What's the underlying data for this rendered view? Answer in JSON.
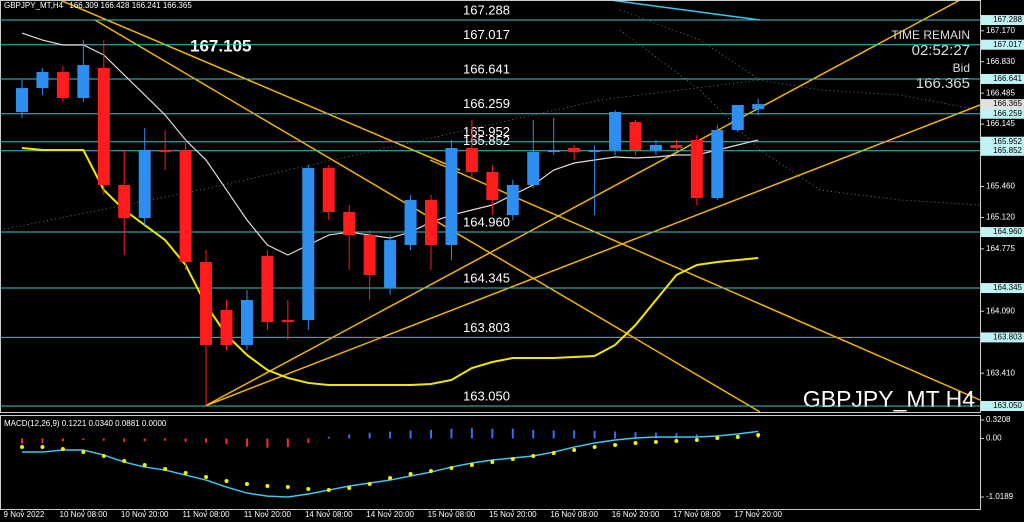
{
  "chart_data": [
    {
      "type": "candlestick",
      "title": "GBPJPY_MT,H4",
      "watermark": "GBPJPY_MT H4",
      "annotation": 167.105,
      "timer": {
        "label": "TIME REMAIN",
        "value": "02:52:27"
      },
      "bid_label": "Bid",
      "categories": [
        "9 Nov 2022",
        null,
        null,
        "10 Nov 08:00",
        null,
        null,
        "10 Nov 20:00",
        null,
        null,
        "11 Nov 08:00",
        null,
        null,
        "11 Nov 20:00",
        null,
        null,
        "14 Nov 08:00",
        null,
        null,
        "14 Nov 20:00",
        null,
        null,
        "15 Nov 08:00",
        null,
        null,
        "15 Nov 20:00",
        null,
        null,
        "16 Nov 08:00",
        null,
        null,
        "16 Nov 20:00",
        null,
        null,
        "17 Nov 08:00",
        null,
        null,
        "17 Nov 20:00"
      ],
      "open": [
        166.278,
        166.541,
        166.717,
        166.432,
        166.761,
        165.477,
        165.114,
        165.861,
        165.861,
        164.631,
        164.104,
        163.72,
        164.697,
        163.994,
        163.994,
        165.663,
        165.18,
        164.927,
        164.346,
        164.818,
        165.312,
        164.818,
        165.883,
        165.619,
        165.147,
        165.477,
        165.839,
        165.883,
        165.839,
        165.861,
        166.168,
        165.861,
        165.916,
        165.971,
        165.334,
        166.08,
        166.309
      ],
      "high": [
        166.629,
        166.761,
        166.783,
        167.068,
        167.068,
        165.861,
        166.102,
        166.08,
        165.971,
        164.763,
        164.214,
        164.324,
        164.763,
        164.214,
        165.696,
        165.696,
        165.257,
        164.982,
        164.927,
        165.367,
        165.367,
        165.971,
        166.19,
        165.696,
        165.532,
        166.19,
        166.212,
        165.916,
        165.916,
        166.3,
        166.19,
        165.971,
        165.971,
        166.025,
        166.135,
        166.355,
        166.428
      ],
      "low": [
        166.212,
        166.465,
        166.388,
        166.388,
        165.367,
        164.708,
        165.037,
        165.641,
        164.543,
        163.05,
        163.665,
        163.665,
        163.885,
        163.775,
        163.885,
        165.092,
        164.543,
        164.214,
        164.269,
        164.763,
        164.543,
        164.653,
        165.532,
        165.147,
        165.092,
        165.444,
        165.806,
        165.751,
        165.147,
        165.806,
        165.806,
        165.806,
        165.861,
        165.257,
        165.312,
        166.058,
        166.241
      ],
      "close": [
        166.541,
        166.717,
        166.432,
        166.794,
        165.477,
        165.114,
        165.861,
        165.839,
        164.631,
        163.72,
        163.72,
        164.214,
        163.972,
        163.972,
        165.663,
        165.18,
        164.927,
        164.488,
        164.872,
        165.312,
        164.818,
        165.883,
        165.619,
        165.312,
        165.477,
        165.839,
        165.861,
        165.839,
        165.861,
        166.278,
        165.861,
        165.916,
        165.883,
        165.334,
        166.08,
        166.355,
        166.365
      ],
      "up_color": "#2e8ff0",
      "down_color": "#ff1c1c",
      "series": [
        {
          "color": "#e8d6d6",
          "values": [
            167.145,
            167.068,
            167.014,
            167.014,
            166.904,
            166.684,
            166.465,
            166.245,
            165.971,
            165.751,
            165.422,
            165.092,
            164.818,
            164.708,
            164.818,
            164.927,
            164.96,
            164.927,
            164.894,
            164.96,
            165.07,
            165.147,
            165.202,
            165.257,
            165.367,
            165.477,
            165.641,
            165.718,
            165.751,
            165.784,
            165.773,
            165.784,
            165.806,
            165.806,
            165.861,
            165.916,
            165.971
          ]
        },
        {
          "color": "#f0e800",
          "values": [
            165.883,
            165.861,
            165.861,
            165.861,
            165.422,
            165.202,
            165.037,
            164.872,
            164.598,
            164.159,
            163.83,
            163.61,
            163.445,
            163.358,
            163.303,
            163.281,
            163.281,
            163.281,
            163.281,
            163.281,
            163.292,
            163.336,
            163.467,
            163.533,
            163.577,
            163.577,
            163.577,
            163.588,
            163.599,
            163.72,
            163.939,
            164.214,
            164.488,
            164.598,
            164.631,
            164.653,
            164.675
          ]
        }
      ],
      "ylim": [
        162.984,
        167.508
      ],
      "yticks": [
        {
          "value": 167.17,
          "label": "167.170"
        },
        {
          "value": 166.83,
          "label": "166.830"
        },
        166.485,
        166.145,
        {
          "value": 165.46,
          "label": "165.460"
        },
        {
          "value": 165.12,
          "label": "165.120"
        },
        164.775,
        {
          "value": 164.09,
          "label": "164.090"
        },
        {
          "value": 163.41,
          "label": "163.410"
        }
      ],
      "levels": [
        167.288,
        167.017,
        166.641,
        166.259,
        165.952,
        165.852,
        {
          "value": 164.96,
          "label": "164.960"
        },
        164.345,
        163.803,
        {
          "value": 163.05,
          "label": "163.050"
        }
      ],
      "level_color": "#3cc4c8"
    },
    {
      "type": "macd",
      "title": "MACD(12,26,9) 0.1221 0.0340 0.0881 0.0000",
      "ylim": [
        -1.0189,
        0.3208
      ],
      "yticks": [
        0.3208,
        {
          "value": 0,
          "label": "0.00"
        },
        -1.0189
      ],
      "up_color": "#3b6cf0",
      "down_color": "#ff2a2a",
      "histogram": [
        -0.09,
        -0.08,
        -0.05,
        -0.03,
        -0.04,
        -0.06,
        -0.05,
        -0.04,
        -0.06,
        -0.07,
        -0.1,
        -0.14,
        -0.16,
        -0.15,
        -0.08,
        0.03,
        0.07,
        0.1,
        0.12,
        0.14,
        0.15,
        0.17,
        0.18,
        0.17,
        0.17,
        0.15,
        0.14,
        0.14,
        0.13,
        0.12,
        0.11,
        0.1,
        0.09,
        0.07,
        0.05,
        0.06,
        0.07
      ],
      "series": [
        {
          "style": "line",
          "color": "#3cc8f0",
          "values": [
            -0.237,
            -0.237,
            -0.202,
            -0.202,
            -0.289,
            -0.411,
            -0.498,
            -0.55,
            -0.637,
            -0.724,
            -0.846,
            -0.95,
            -1.003,
            -1.019,
            -0.967,
            -0.898,
            -0.828,
            -0.776,
            -0.724,
            -0.654,
            -0.585,
            -0.498,
            -0.428,
            -0.376,
            -0.341,
            -0.306,
            -0.237,
            -0.15,
            -0.08,
            -0.028,
            0.007,
            0.024,
            0.024,
            0.024,
            0.042,
            0.077,
            0.122
          ]
        },
        {
          "style": "dots",
          "color": "#f5f000",
          "values": [
            -0.15,
            -0.15,
            -0.184,
            -0.237,
            -0.306,
            -0.393,
            -0.463,
            -0.532,
            -0.602,
            -0.672,
            -0.741,
            -0.793,
            -0.828,
            -0.846,
            -0.88,
            -0.898,
            -0.863,
            -0.793,
            -0.689,
            -0.619,
            -0.567,
            -0.515,
            -0.463,
            -0.411,
            -0.358,
            -0.306,
            -0.254,
            -0.202,
            -0.15,
            -0.115,
            -0.08,
            -0.063,
            -0.045,
            -0.028,
            0.007,
            0.024,
            0.059
          ]
        }
      ]
    }
  ]
}
